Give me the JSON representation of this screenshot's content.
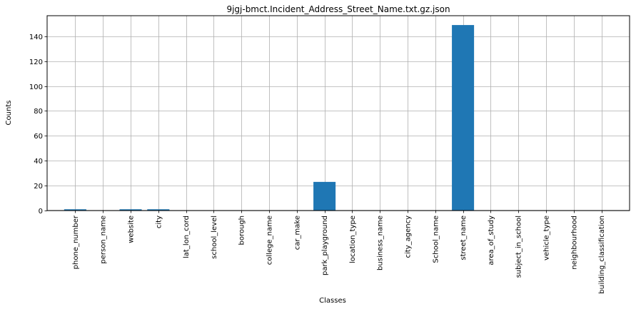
{
  "chart_data": {
    "type": "bar",
    "title": "9jgj-bmct.Incident_Address_Street_Name.txt.gz.json",
    "xlabel": "Classes",
    "ylabel": "Counts",
    "categories": [
      "phone_number",
      "person_name",
      "website",
      "city",
      "lat_lon_cord",
      "school_level",
      "borough",
      "college_name",
      "car_make",
      "park_playground",
      "location_type",
      "business_name",
      "city_agency",
      "School_name",
      "street_name",
      "area_of_study",
      "subject_in_school",
      "vehicle_type",
      "neighbourhood",
      "building_classification"
    ],
    "values": [
      1,
      0,
      1,
      1,
      0,
      0,
      0,
      0,
      0,
      23,
      0,
      0,
      0,
      0,
      149,
      0,
      0,
      0,
      0,
      0
    ],
    "ylim": [
      0,
      156.5
    ],
    "yticks": [
      0,
      20,
      40,
      60,
      80,
      100,
      120,
      140
    ],
    "grid": true,
    "bar_color": "#1f77b4"
  }
}
